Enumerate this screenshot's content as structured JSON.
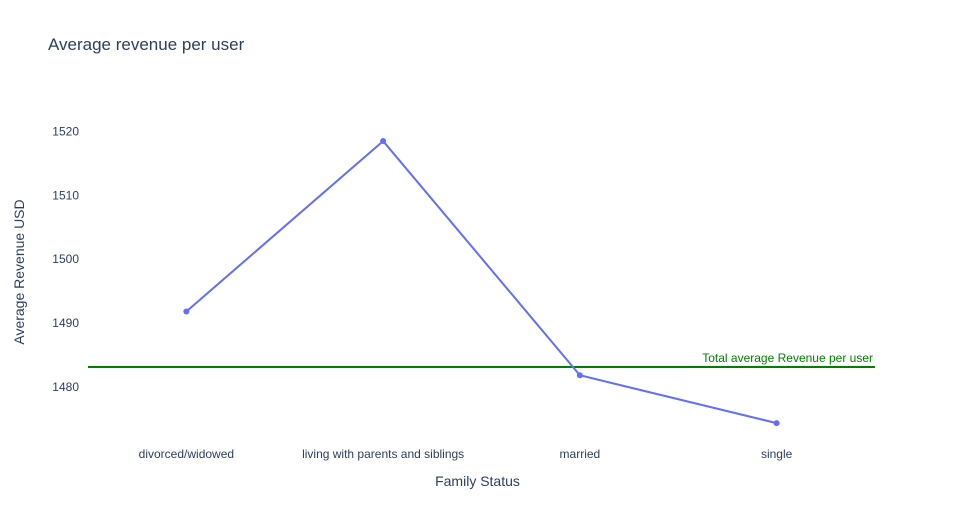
{
  "chart_data": {
    "type": "line",
    "title": "Average revenue per user",
    "xlabel": "Family Status",
    "ylabel": "Average Revenue USD",
    "categories": [
      "divorced/widowed",
      "living with parents and siblings",
      "married",
      "single"
    ],
    "series": [
      {
        "values": [
          1491.8,
          1518.5,
          1481.8,
          1474.3
        ],
        "color": "#636efa"
      }
    ],
    "ylim": [
      1471.5,
      1526.5
    ],
    "yticks": [
      1480,
      1490,
      1500,
      1510,
      1520
    ],
    "reference_line": {
      "value": 1483.1,
      "label": "Total average Revenue per user",
      "color": "#008000"
    },
    "grid": false
  }
}
